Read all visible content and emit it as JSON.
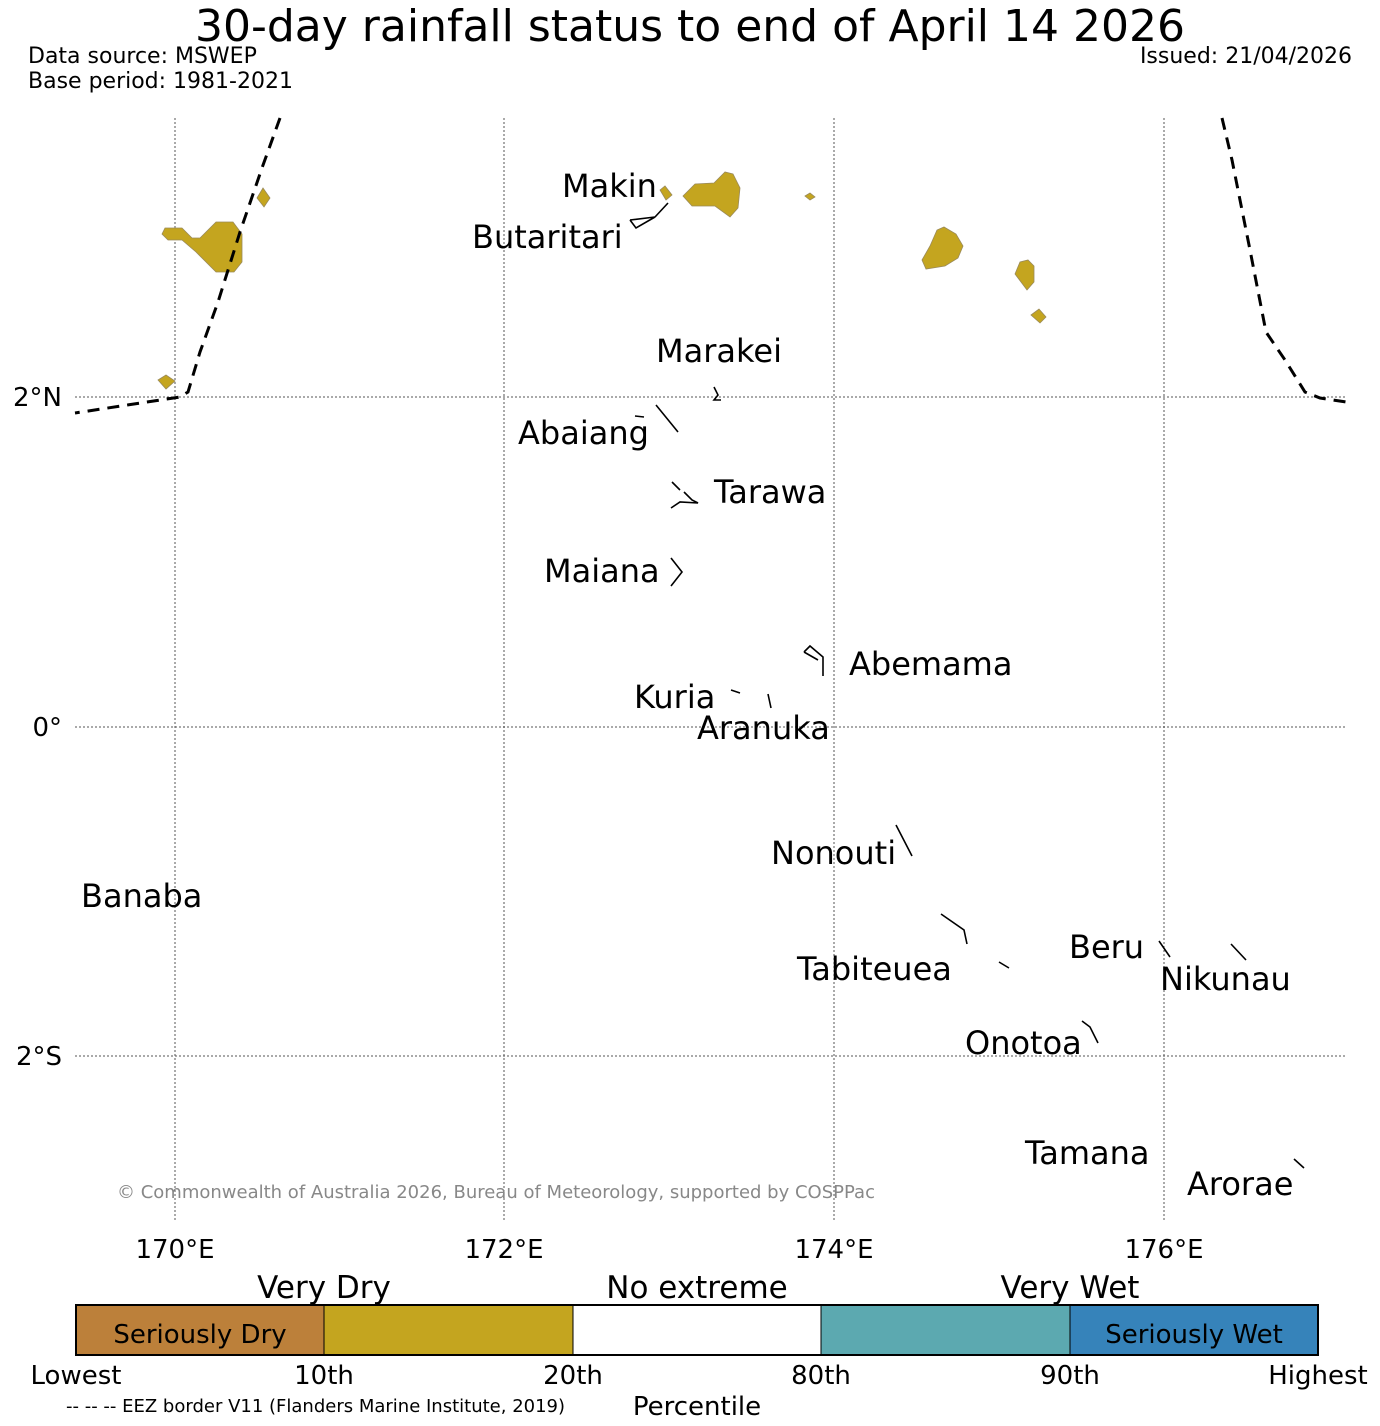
{
  "header": {
    "title": "30-day rainfall status to end of April 14 2026",
    "data_source": "Data source: MSWEP",
    "base_period": "Base period: 1981-2021",
    "issued": "Issued: 21/04/2026"
  },
  "map": {
    "lon_labels": [
      "170°E",
      "172°E",
      "174°E",
      "176°E"
    ],
    "lat_labels": [
      "2°N",
      "0°",
      "2°S"
    ],
    "islands": [
      "Makin",
      "Butaritari",
      "Marakei",
      "Abaiang",
      "Tarawa",
      "Maiana",
      "Abemama",
      "Kuria",
      "Aranuka",
      "Nonouti",
      "Banaba",
      "Tabiteuea",
      "Beru",
      "Nikunau",
      "Onotoa",
      "Tamana",
      "Arorae"
    ],
    "copyright": "© Commonwealth of Australia 2026, Bureau of Meteorology, supported by COSPPac",
    "region_category": "Very Dry"
  },
  "colorbar": {
    "categories": [
      {
        "range": "Lowest–10th",
        "label": "Seriously Dry",
        "color": "#bc803a"
      },
      {
        "range": "10th–20th",
        "label": "",
        "color": "#c4a51f"
      },
      {
        "range": "20th–80th",
        "label": "",
        "color": "#ffffff"
      },
      {
        "range": "80th–90th",
        "label": "",
        "color": "#5ca9b0"
      },
      {
        "range": "90th–Highest",
        "label": "Seriously Wet",
        "color": "#3683ba"
      }
    ],
    "group_labels": [
      "Very Dry",
      "No extreme",
      "Very Wet"
    ],
    "ticks": [
      "Lowest",
      "10th",
      "20th",
      "80th",
      "90th",
      "Highest"
    ],
    "axis_label": "Percentile"
  },
  "footer": {
    "eez_note": "-- -- -- EEZ border V11 (Flanders Marine Institute, 2019)"
  },
  "colors": {
    "very_dry_fill": "#c4a51f",
    "text_gray": "#888888"
  }
}
